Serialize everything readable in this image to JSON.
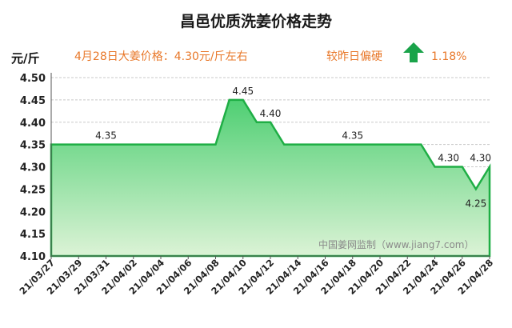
{
  "header": {
    "title": "昌邑优质洗姜价格走势",
    "unit": "元/斤",
    "price_note": "4月28日大姜价格：4.30元/斤左右",
    "compare_label": "较昨日偏硬",
    "change_pct": "1.18%",
    "change_direction": "up",
    "accent_color": "#e8782a",
    "arrow_color": "#1aa34a"
  },
  "watermark": "中国姜网监制（www.jiang7.com）",
  "chart_data": {
    "type": "area",
    "title": "昌邑优质洗姜价格走势",
    "ylabel": "元/斤",
    "xlabel": "",
    "ylim": [
      4.1,
      4.5
    ],
    "yticks": [
      4.1,
      4.15,
      4.2,
      4.25,
      4.3,
      4.35,
      4.4,
      4.45,
      4.5
    ],
    "x": [
      "21/03/27",
      "21/03/28",
      "21/03/29",
      "21/03/30",
      "21/03/31",
      "21/04/01",
      "21/04/02",
      "21/04/03",
      "21/04/04",
      "21/04/05",
      "21/04/06",
      "21/04/07",
      "21/04/08",
      "21/04/09",
      "21/04/10",
      "21/04/11",
      "21/04/12",
      "21/04/13",
      "21/04/14",
      "21/04/15",
      "21/04/16",
      "21/04/17",
      "21/04/18",
      "21/04/19",
      "21/04/20",
      "21/04/21",
      "21/04/22",
      "21/04/23",
      "21/04/24",
      "21/04/25",
      "21/04/26",
      "21/04/27",
      "21/04/28"
    ],
    "values": [
      4.35,
      4.35,
      4.35,
      4.35,
      4.35,
      4.35,
      4.35,
      4.35,
      4.35,
      4.35,
      4.35,
      4.35,
      4.35,
      4.45,
      4.45,
      4.4,
      4.4,
      4.35,
      4.35,
      4.35,
      4.35,
      4.35,
      4.35,
      4.35,
      4.35,
      4.35,
      4.35,
      4.35,
      4.3,
      4.3,
      4.3,
      4.25,
      4.3
    ],
    "xtick_labels": [
      "21/03/27",
      "21/03/29",
      "21/03/31",
      "21/04/02",
      "21/04/04",
      "21/04/06",
      "21/04/08",
      "21/04/10",
      "21/04/12",
      "21/04/14",
      "21/04/16",
      "21/04/18",
      "21/04/20",
      "21/04/22",
      "21/04/24",
      "21/04/26",
      "21/04/28"
    ],
    "data_labels": [
      {
        "x": "21/03/31",
        "value": 4.35,
        "text": "4.35"
      },
      {
        "x": "21/04/10",
        "value": 4.45,
        "text": "4.45"
      },
      {
        "x": "21/04/12",
        "value": 4.4,
        "text": "4.40"
      },
      {
        "x": "21/04/18",
        "value": 4.35,
        "text": "4.35"
      },
      {
        "x": "21/04/25",
        "value": 4.3,
        "text": "4.30"
      },
      {
        "x": "21/04/27",
        "value": 4.25,
        "text": "4.25",
        "position": "below"
      },
      {
        "x": "21/04/28",
        "value": 4.3,
        "text": "4.30"
      }
    ],
    "grid": true,
    "line_color": "#1fae45",
    "fill_top_color": "#4fcf73",
    "fill_bottom_color": "#dcf3d6"
  }
}
